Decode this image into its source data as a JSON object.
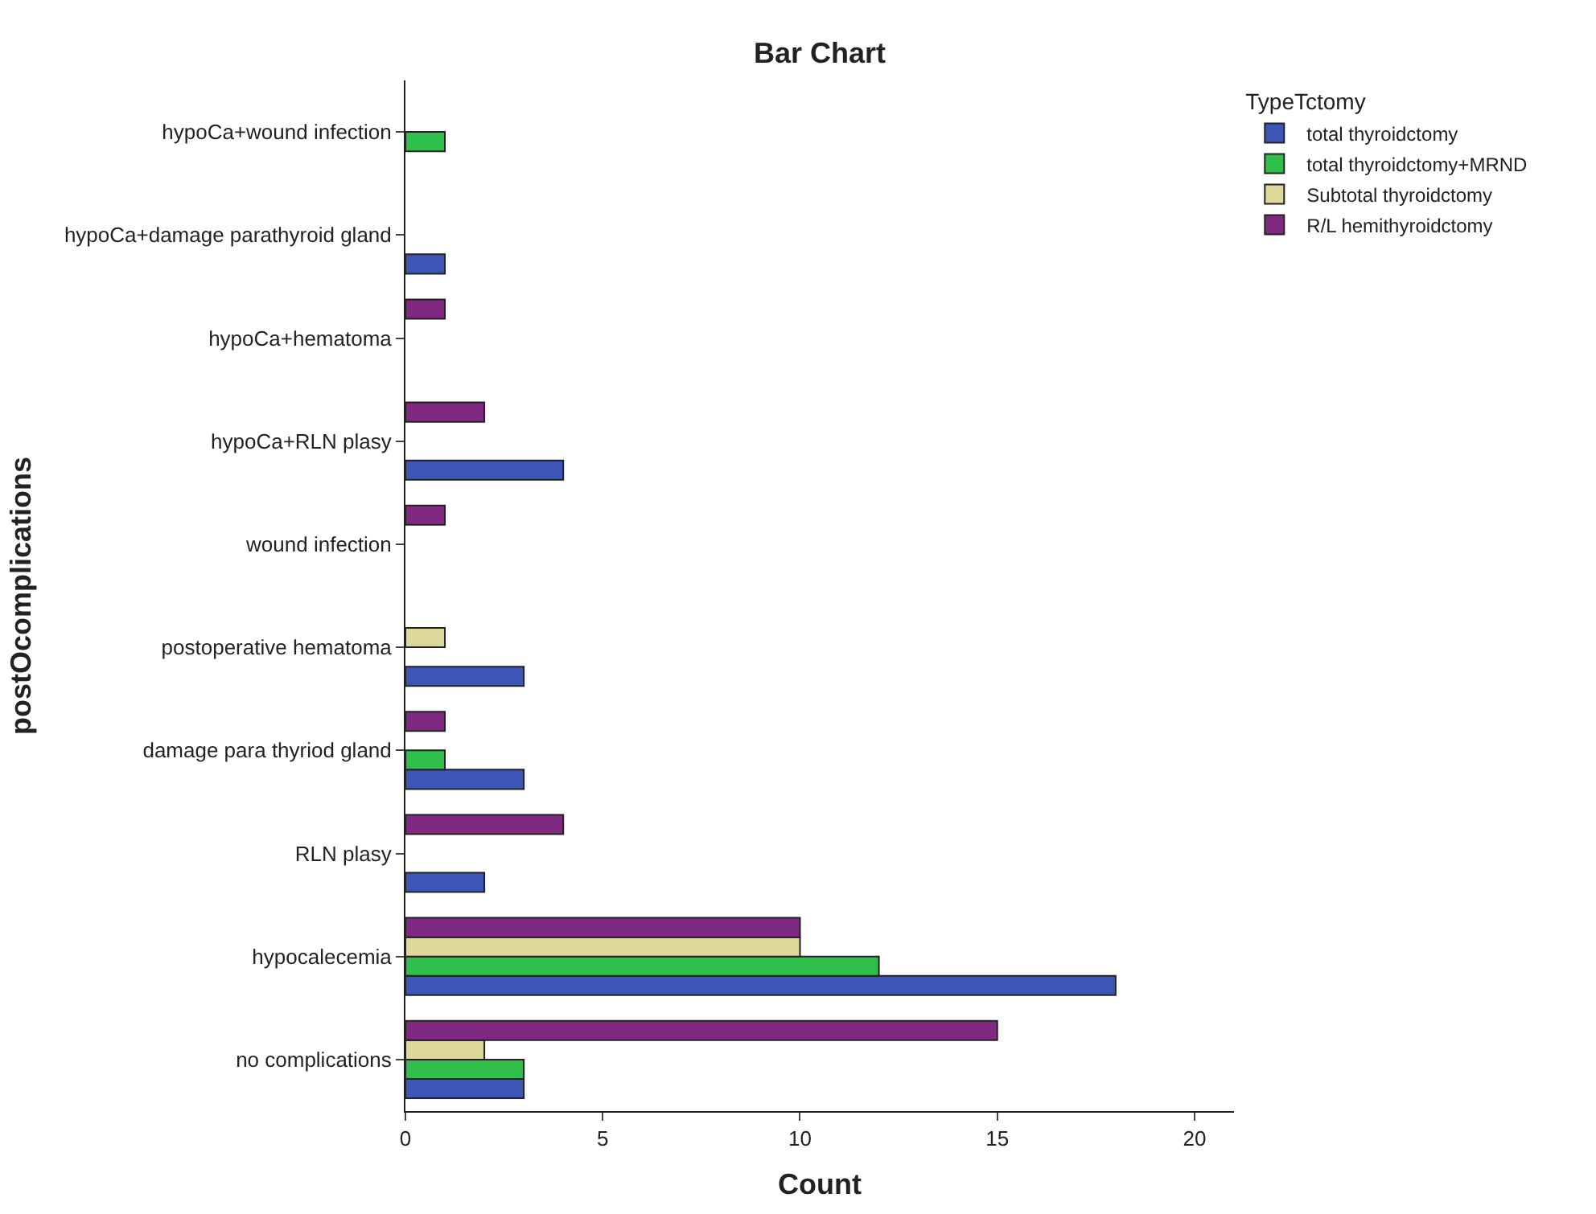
{
  "chart_data": {
    "type": "bar",
    "orientation": "horizontal",
    "title": "Bar Chart",
    "xlabel": "Count",
    "ylabel": "postOcomplications",
    "legend_title": "TypeTctomy",
    "legend": "top right",
    "categories": [
      "hypoCa+wound infection",
      "hypoCa+damage parathyroid gland",
      "hypoCa+hematoma",
      "hypoCa+RLN plasy",
      "wound infection",
      "postoperative hematoma",
      "damage para thyriod gland",
      "RLN plasy",
      "hypocalecemia",
      "no complications"
    ],
    "series": [
      {
        "name": "total thyroidctomy",
        "color": "#3c56b8",
        "values": [
          null,
          1,
          null,
          4,
          null,
          3,
          3,
          2,
          18,
          3
        ]
      },
      {
        "name": "total thyroidctomy+MRND",
        "color": "#2fbf4a",
        "values": [
          1,
          null,
          null,
          null,
          null,
          null,
          1,
          null,
          12,
          3
        ]
      },
      {
        "name": "Subtotal thyroidctomy",
        "color": "#ddd89a",
        "values": [
          null,
          null,
          null,
          null,
          null,
          1,
          null,
          null,
          10,
          2
        ]
      },
      {
        "name": "R/L hemithyroidctomy",
        "color": "#7f2a80",
        "values": [
          null,
          null,
          1,
          2,
          1,
          null,
          1,
          4,
          10,
          15
        ]
      }
    ],
    "xlim": [
      0,
      21
    ],
    "xticks": [
      0,
      5,
      10,
      15,
      20
    ]
  }
}
